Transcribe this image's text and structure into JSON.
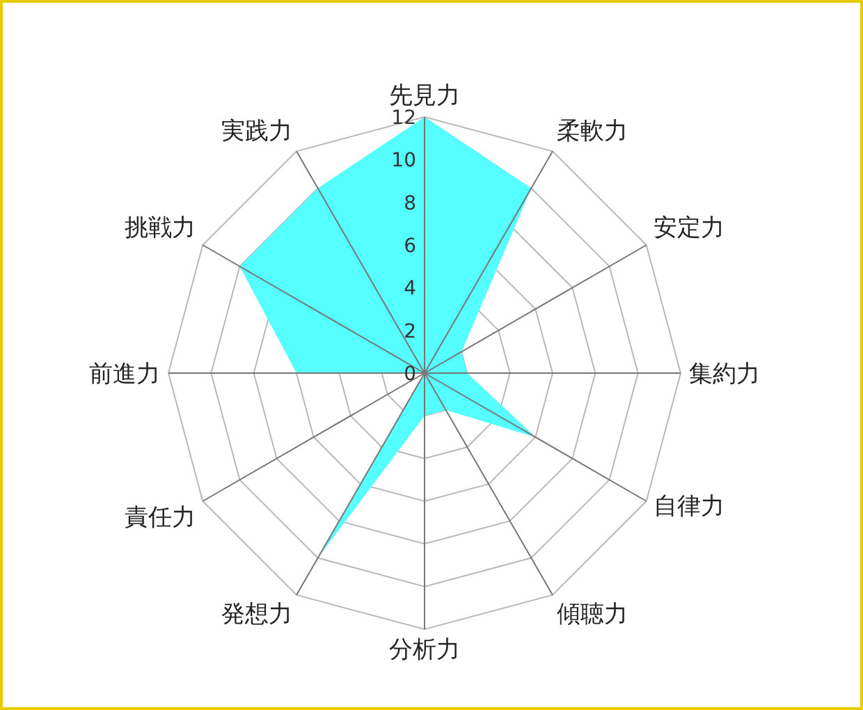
{
  "chart_data": {
    "type": "radar",
    "categories": [
      "先見力",
      "柔軟力",
      "安定力",
      "集約力",
      "自律力",
      "傾聴力",
      "分析力",
      "発想力",
      "責任力",
      "前進力",
      "挑戦力",
      "実践力"
    ],
    "series": [
      {
        "color": "#55ffff",
        "values": [
          12,
          10,
          2,
          2,
          6,
          2,
          2,
          10,
          0,
          6,
          10,
          10
        ]
      }
    ],
    "ylim": [
      0,
      12
    ],
    "yticks": [
      0,
      2,
      4,
      6,
      8,
      10,
      12
    ],
    "grid": true
  }
}
